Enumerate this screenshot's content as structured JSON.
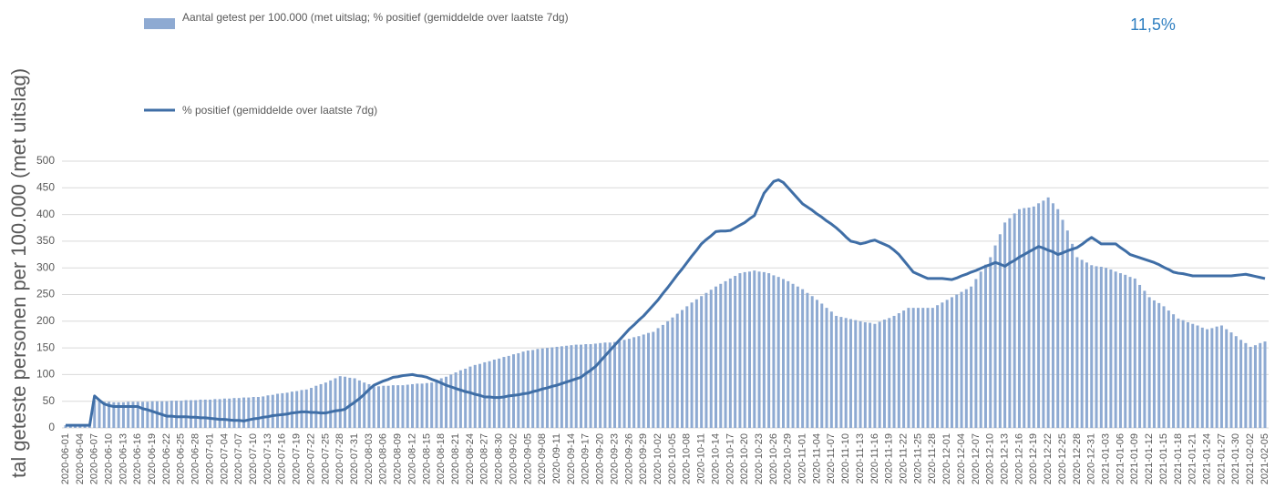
{
  "chart_data": {
    "type": "bar",
    "y_label": "tal geteste personen per 100.000 (met uitslag)",
    "annotation": "11,5%",
    "ylim": [
      0,
      500
    ],
    "yticks": [
      0,
      50,
      100,
      150,
      200,
      250,
      300,
      350,
      400,
      450,
      500
    ],
    "grid": true,
    "categories": [
      "2020-06-01",
      null,
      null,
      "2020-06-04",
      null,
      null,
      "2020-06-07",
      null,
      null,
      "2020-06-10",
      null,
      null,
      "2020-06-13",
      null,
      null,
      "2020-06-16",
      null,
      null,
      "2020-06-19",
      null,
      null,
      "2020-06-22",
      null,
      null,
      "2020-06-25",
      null,
      null,
      "2020-06-28",
      null,
      null,
      "2020-07-01",
      null,
      null,
      "2020-07-04",
      null,
      null,
      "2020-07-07",
      null,
      null,
      "2020-07-10",
      null,
      null,
      "2020-07-13",
      null,
      null,
      "2020-07-16",
      null,
      null,
      "2020-07-19",
      null,
      null,
      "2020-07-22",
      null,
      null,
      "2020-07-25",
      null,
      null,
      "2020-07-28",
      null,
      null,
      "2020-07-31",
      null,
      null,
      "2020-08-03",
      null,
      null,
      "2020-08-06",
      null,
      null,
      "2020-08-09",
      null,
      null,
      "2020-08-12",
      null,
      null,
      "2020-08-15",
      null,
      null,
      "2020-08-18",
      null,
      null,
      "2020-08-21",
      null,
      null,
      "2020-08-24",
      null,
      null,
      "2020-08-27",
      null,
      null,
      "2020-08-30",
      null,
      null,
      "2020-09-02",
      null,
      null,
      "2020-09-05",
      null,
      null,
      "2020-09-08",
      null,
      null,
      "2020-09-11",
      null,
      null,
      "2020-09-14",
      null,
      null,
      "2020-09-17",
      null,
      null,
      "2020-09-20",
      null,
      null,
      "2020-09-23",
      null,
      null,
      "2020-09-26",
      null,
      null,
      "2020-09-29",
      null,
      null,
      "2020-10-02",
      null,
      null,
      "2020-10-05",
      null,
      null,
      "2020-10-08",
      null,
      null,
      "2020-10-11",
      null,
      null,
      "2020-10-14",
      null,
      null,
      "2020-10-17",
      null,
      null,
      "2020-10-20",
      null,
      null,
      "2020-10-23",
      null,
      null,
      "2020-10-26",
      null,
      null,
      "2020-10-29",
      null,
      null,
      "2020-11-01",
      null,
      null,
      "2020-11-04",
      null,
      null,
      "2020-11-07",
      null,
      null,
      "2020-11-10",
      null,
      null,
      "2020-11-13",
      null,
      null,
      "2020-11-16",
      null,
      null,
      "2020-11-19",
      null,
      null,
      "2020-11-22",
      null,
      null,
      "2020-11-25",
      null,
      null,
      "2020-11-28",
      null,
      null,
      "2020-12-01",
      null,
      null,
      "2020-12-04",
      null,
      null,
      "2020-12-07",
      null,
      null,
      "2020-12-10",
      null,
      null,
      "2020-12-13",
      null,
      null,
      "2020-12-16",
      null,
      null,
      "2020-12-19",
      null,
      null,
      "2020-12-22",
      null,
      null,
      "2020-12-25",
      null,
      null,
      "2020-12-28",
      null,
      null,
      "2020-12-31",
      null,
      null,
      "2021-01-03",
      null,
      null,
      "2021-01-06",
      null,
      null,
      "2021-01-09",
      null,
      null,
      "2021-01-12",
      null,
      null,
      "2021-01-15",
      null,
      null,
      "2021-01-18",
      null,
      null,
      "2021-01-21",
      null,
      null,
      "2021-01-24",
      null,
      null,
      "2021-01-27",
      null,
      null,
      "2021-01-30",
      null,
      null,
      "2021-02-02",
      null,
      null,
      "2021-02-05"
    ],
    "series": [
      {
        "name": "Aantal getest per 100.000 (met uitslag; % positief (gemiddelde over laatste 7dg)",
        "type": "bar",
        "color": "#8eaad2",
        "values": [
          5,
          5,
          5,
          5,
          5,
          5,
          52,
          50,
          49,
          49,
          48,
          48,
          48,
          49,
          49,
          49,
          49,
          49,
          50,
          50,
          50,
          50,
          51,
          51,
          51,
          52,
          52,
          52,
          53,
          53,
          53,
          54,
          54,
          55,
          55,
          56,
          56,
          57,
          57,
          58,
          58,
          59,
          61,
          62,
          64,
          65,
          66,
          68,
          69,
          71,
          72,
          75,
          79,
          82,
          85,
          89,
          93,
          97,
          96,
          94,
          93,
          89,
          85,
          82,
          78,
          78,
          79,
          79,
          80,
          80,
          80,
          81,
          82,
          83,
          83,
          84,
          85,
          89,
          93,
          96,
          100,
          104,
          108,
          111,
          115,
          118,
          120,
          123,
          125,
          128,
          130,
          133,
          135,
          138,
          140,
          143,
          145,
          146,
          148,
          149,
          150,
          151,
          152,
          153,
          154,
          155,
          156,
          156,
          157,
          157,
          158,
          159,
          160,
          160,
          161,
          162,
          165,
          167,
          170,
          172,
          175,
          178,
          180,
          187,
          193,
          200,
          207,
          214,
          221,
          228,
          235,
          241,
          247,
          253,
          259,
          265,
          270,
          275,
          280,
          285,
          290,
          292,
          293,
          295,
          293,
          292,
          290,
          286,
          283,
          279,
          275,
          270,
          265,
          260,
          253,
          247,
          240,
          233,
          225,
          218,
          210,
          208,
          206,
          204,
          202,
          200,
          198,
          197,
          195,
          199,
          203,
          206,
          210,
          215,
          220,
          225,
          225,
          225,
          225,
          225,
          225,
          230,
          235,
          240,
          245,
          250,
          255,
          260,
          265,
          279,
          293,
          306,
          320,
          342,
          363,
          385,
          393,
          402,
          410,
          412,
          413,
          415,
          421,
          426,
          432,
          421,
          410,
          390,
          370,
          345,
          320,
          315,
          310,
          305,
          303,
          302,
          300,
          297,
          293,
          290,
          287,
          283,
          280,
          268,
          257,
          245,
          239,
          234,
          228,
          220,
          213,
          205,
          202,
          198,
          195,
          192,
          188,
          185,
          187,
          190,
          192,
          185,
          179,
          172,
          165,
          159,
          152,
          155,
          159,
          162
        ]
      },
      {
        "name": "% positief (gemiddelde over laatste 7dg)",
        "type": "line",
        "color": "#3f6ea6",
        "values": [
          5,
          5,
          5,
          5,
          5,
          5,
          60,
          52,
          45,
          42,
          40,
          40,
          40,
          40,
          40,
          40,
          36,
          34,
          31,
          28,
          25,
          22,
          22,
          21,
          21,
          21,
          20,
          20,
          19,
          19,
          18,
          17,
          16,
          16,
          15,
          14,
          14,
          13,
          15,
          17,
          18,
          20,
          21,
          23,
          24,
          25,
          26,
          28,
          29,
          30,
          30,
          29,
          29,
          28,
          28,
          30,
          32,
          33,
          35,
          42,
          48,
          55,
          63,
          72,
          80,
          84,
          88,
          91,
          95,
          96,
          98,
          99,
          100,
          98,
          97,
          95,
          91,
          88,
          84,
          80,
          77,
          74,
          71,
          68,
          66,
          63,
          61,
          58,
          58,
          57,
          57,
          58,
          60,
          61,
          62,
          64,
          65,
          68,
          70,
          73,
          75,
          78,
          80,
          83,
          86,
          89,
          92,
          95,
          102,
          108,
          115,
          125,
          135,
          145,
          155,
          165,
          175,
          185,
          193,
          202,
          210,
          220,
          230,
          240,
          252,
          263,
          275,
          287,
          298,
          310,
          322,
          333,
          345,
          353,
          360,
          368,
          369,
          369,
          370,
          375,
          380,
          385,
          392,
          398,
          419,
          440,
          451,
          462,
          465,
          460,
          450,
          440,
          430,
          420,
          414,
          408,
          401,
          395,
          388,
          382,
          375,
          367,
          358,
          350,
          348,
          345,
          347,
          350,
          352,
          348,
          344,
          340,
          333,
          325,
          314,
          303,
          292,
          288,
          284,
          280,
          280,
          280,
          280,
          279,
          278,
          281,
          285,
          288,
          292,
          295,
          299,
          303,
          306,
          310,
          307,
          303,
          309,
          314,
          320,
          325,
          330,
          335,
          340,
          337,
          333,
          330,
          325,
          328,
          332,
          335,
          338,
          344,
          351,
          357,
          351,
          345,
          345,
          345,
          345,
          338,
          332,
          325,
          322,
          319,
          316,
          313,
          310,
          306,
          301,
          297,
          292,
          290,
          289,
          287,
          285,
          285,
          285,
          285,
          285,
          285,
          285,
          285,
          285,
          286,
          287,
          288,
          286,
          284,
          282,
          280
        ]
      }
    ]
  }
}
